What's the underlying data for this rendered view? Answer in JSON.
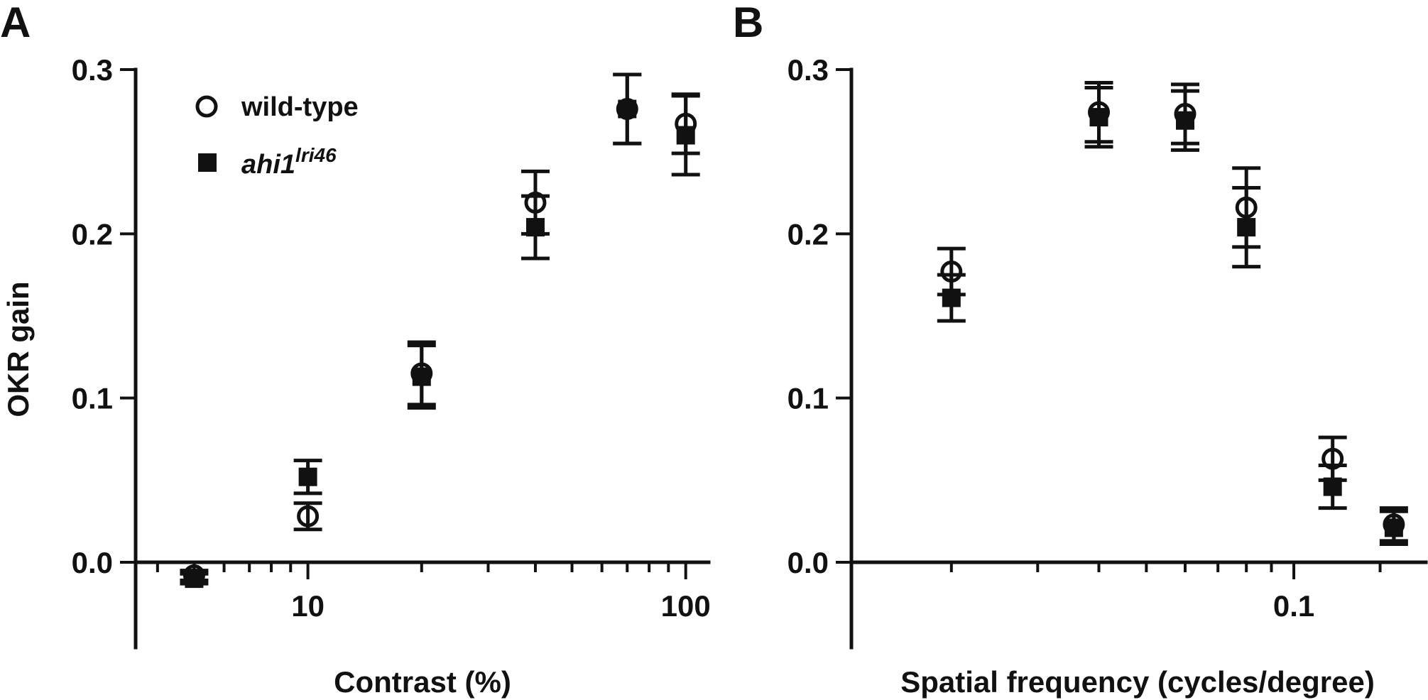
{
  "colors": {
    "ink": "#111111",
    "background": "#ffffff"
  },
  "legend": {
    "placement": "top-left of panel A",
    "wild_type": "wild-type",
    "mutant_base": "ahi1",
    "mutant_sup": "lri46"
  },
  "chart_data": [
    {
      "type": "scatter",
      "panel": "A",
      "xlabel": "Contrast (%)",
      "ylabel": "OKR gain",
      "xscale": "log",
      "xlim": [
        3.5,
        115
      ],
      "ylim": [
        -0.05,
        0.3
      ],
      "x_ticks": [
        10,
        100
      ],
      "x_tick_labels": [
        "10",
        "100"
      ],
      "y_ticks": [
        0.0,
        0.1,
        0.2,
        0.3
      ],
      "y_tick_labels": [
        "0.0",
        "0.1",
        "0.2",
        "0.3"
      ],
      "grid": false,
      "series": [
        {
          "name": "wild-type",
          "marker": "open-circle",
          "x": [
            5,
            10,
            20,
            40,
            70,
            100
          ],
          "y": [
            -0.008,
            0.028,
            0.115,
            0.219,
            0.276,
            0.267
          ],
          "err": [
            0.003,
            0.008,
            0.019,
            0.019,
            0.021,
            0.018
          ]
        },
        {
          "name": "ahi1 lri46",
          "marker": "filled-square",
          "x": [
            5,
            10,
            20,
            40,
            70,
            100
          ],
          "y": [
            -0.01,
            0.052,
            0.113,
            0.204,
            0.276,
            0.26
          ],
          "err": [
            0.003,
            0.01,
            0.019,
            0.019,
            0.021,
            0.024
          ]
        }
      ]
    },
    {
      "type": "scatter",
      "panel": "B",
      "xlabel": "Spatial frequency (cycles/degree)",
      "ylabel": "",
      "xscale": "log",
      "xlim": [
        0.0125,
        0.186
      ],
      "ylim": [
        -0.05,
        0.3
      ],
      "x_ticks": [
        0.1
      ],
      "x_tick_labels": [
        "0.1"
      ],
      "y_ticks": [
        0.0,
        0.1,
        0.2,
        0.3
      ],
      "y_tick_labels": [
        "0.0",
        "0.1",
        "0.2",
        "0.3"
      ],
      "grid": false,
      "series": [
        {
          "name": "wild-type",
          "marker": "open-circle",
          "x": [
            0.02,
            0.04,
            0.06,
            0.08,
            0.12,
            0.16
          ],
          "y": [
            0.177,
            0.274,
            0.273,
            0.216,
            0.063,
            0.023
          ],
          "err": [
            0.014,
            0.018,
            0.018,
            0.024,
            0.013,
            0.01
          ]
        },
        {
          "name": "ahi1 lri46",
          "marker": "filled-square",
          "x": [
            0.02,
            0.04,
            0.06,
            0.08,
            0.12,
            0.16
          ],
          "y": [
            0.161,
            0.271,
            0.269,
            0.204,
            0.046,
            0.021
          ],
          "err": [
            0.014,
            0.018,
            0.018,
            0.024,
            0.013,
            0.01
          ]
        }
      ]
    }
  ],
  "panel_letters": [
    "A",
    "B"
  ]
}
